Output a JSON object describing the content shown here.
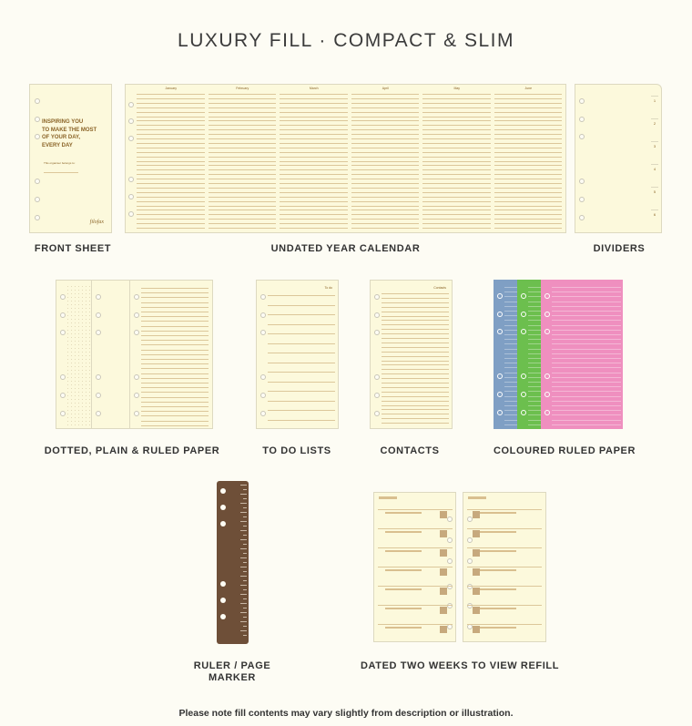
{
  "title": "LUXURY FILL · COMPACT & SLIM",
  "items": {
    "front_sheet": {
      "label": "FRONT SHEET",
      "heading_lines": [
        "INSPIRING YOU",
        "TO MAKE THE MOST",
        "OF YOUR DAY,",
        "EVERY DAY"
      ],
      "owner_text": "This organiser belongs to:",
      "brand": "filofax"
    },
    "year_calendar": {
      "label": "UNDATED YEAR CALENDAR",
      "months": [
        "January",
        "February",
        "March",
        "April",
        "May",
        "June"
      ]
    },
    "dividers": {
      "label": "DIVIDERS",
      "tabs": [
        "1",
        "2",
        "3",
        "4",
        "5",
        "6"
      ]
    },
    "papers": {
      "label": "DOTTED, PLAIN & RULED PAPER"
    },
    "todo": {
      "label": "TO DO LISTS",
      "header": "To do"
    },
    "contacts": {
      "label": "CONTACTS",
      "header": "Contacts"
    },
    "coloured": {
      "label": "COLOURED RULED PAPER",
      "colors": [
        "#7f9fc4",
        "#6cbf4e",
        "#ef8fbf"
      ]
    },
    "ruler": {
      "label_lines": [
        "RULER / PAGE",
        "MARKER"
      ],
      "color": "#6e4f38"
    },
    "dated": {
      "label": "DATED TWO WEEKS TO VIEW REFILL"
    }
  },
  "footer_note": "Please note fill contents may vary slightly from description or illustration.",
  "colors": {
    "background": "#fdfcf4",
    "paper": "#fcf9dc",
    "ink": "#8a6326"
  }
}
